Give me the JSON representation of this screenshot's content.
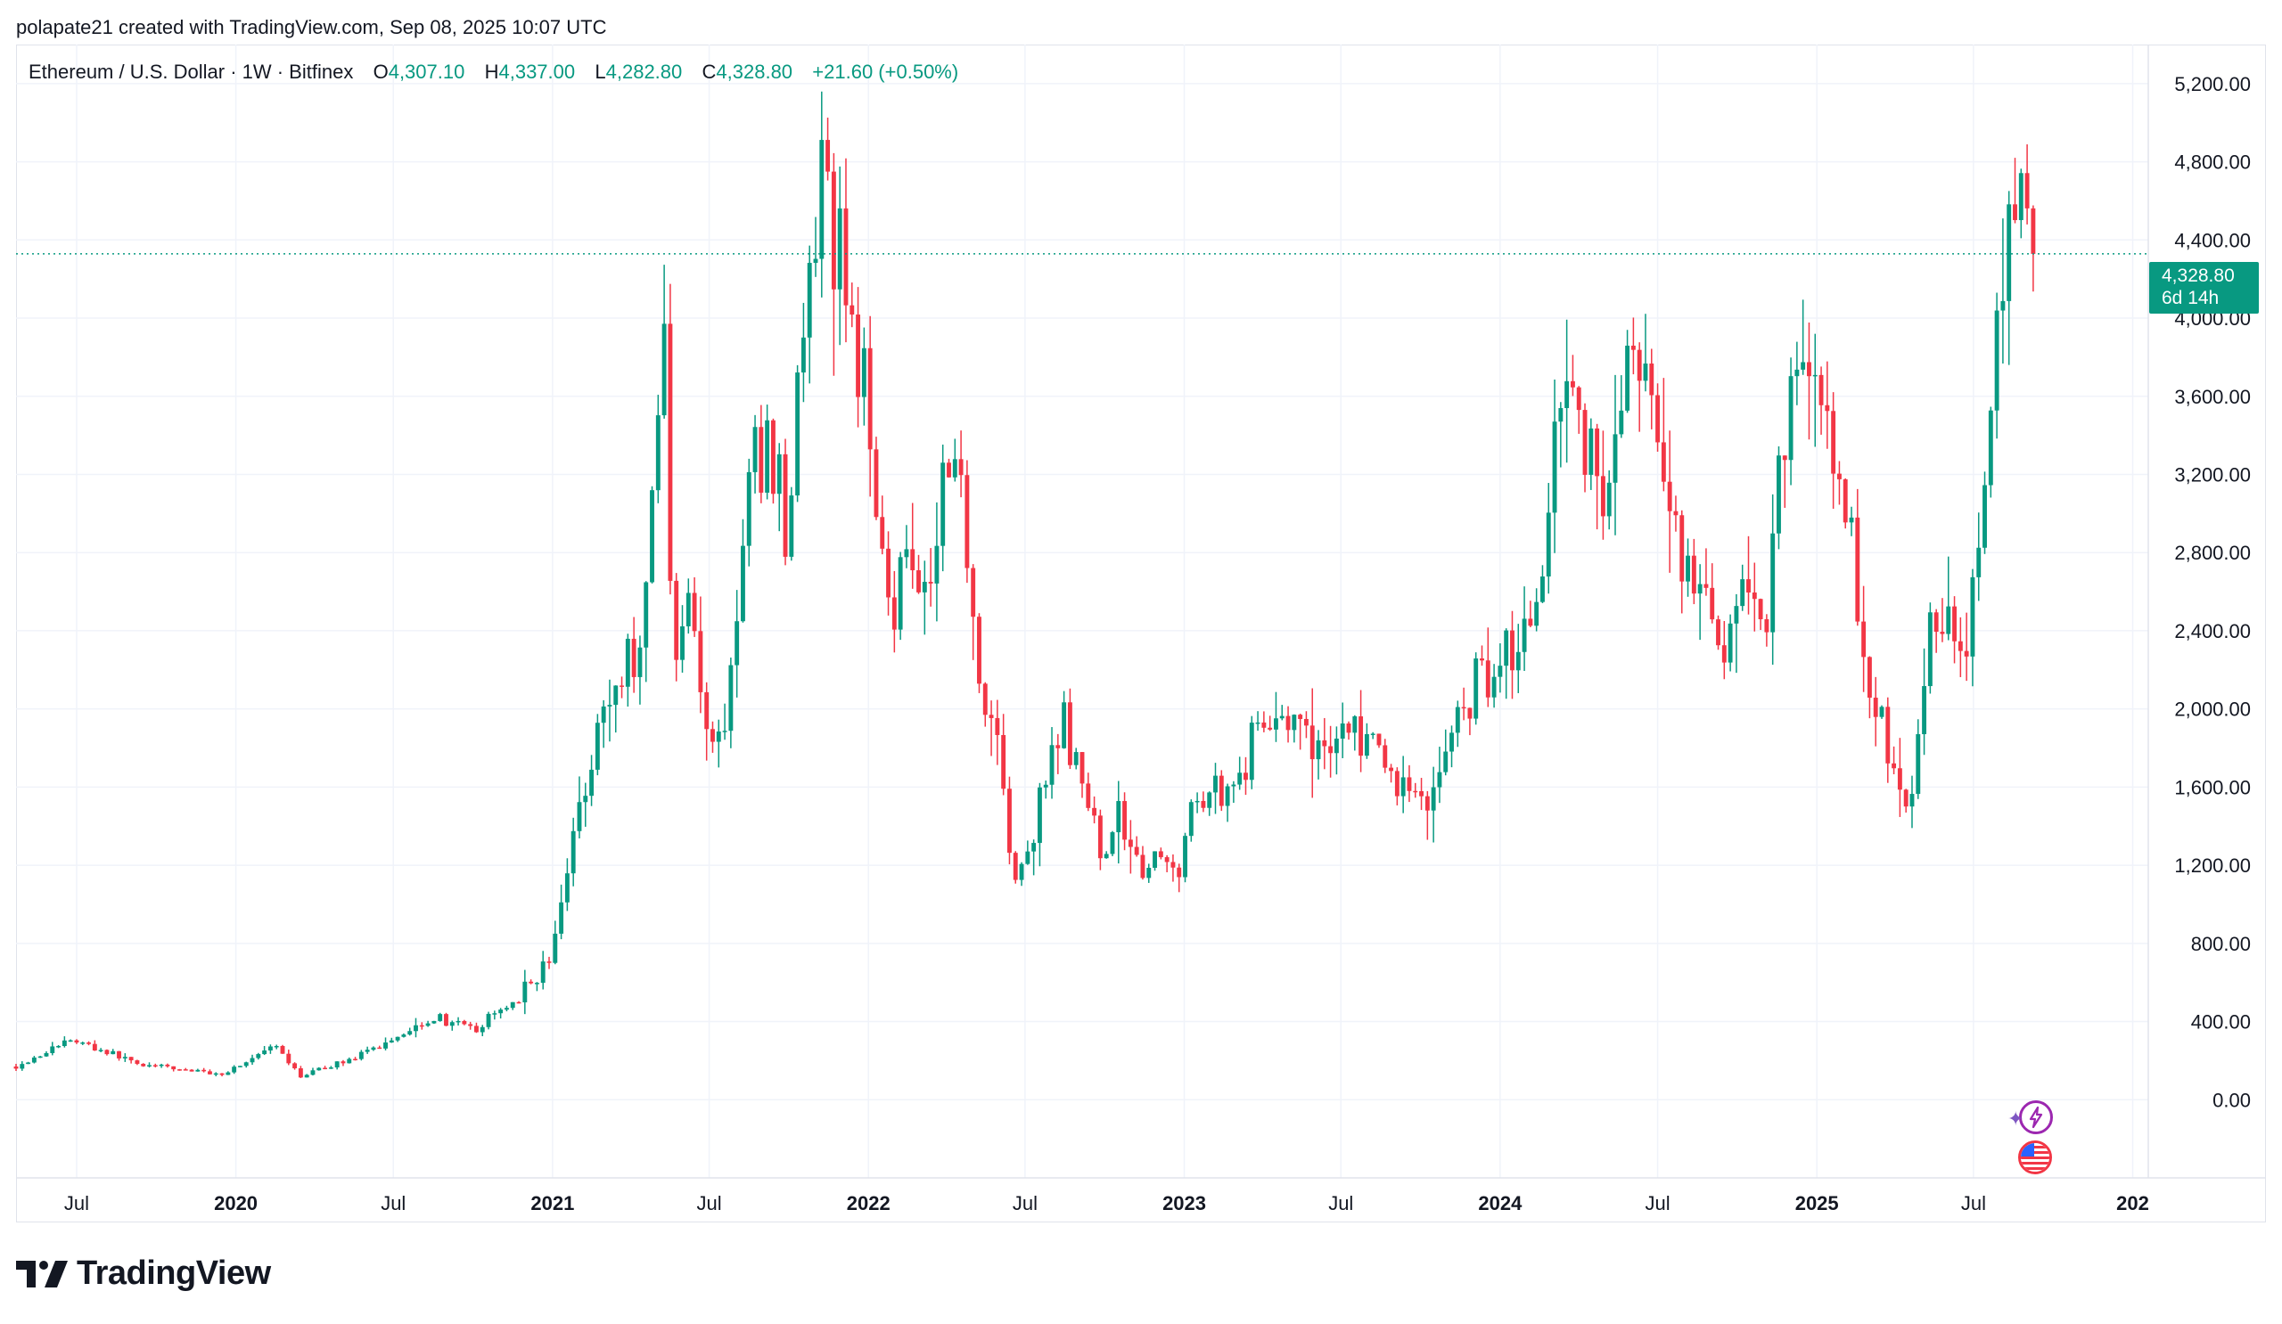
{
  "header": {
    "byline": "polapate21 created with TradingView.com, Sep 08, 2025 10:07 UTC"
  },
  "legend": {
    "symbol": "Ethereum / U.S. Dollar · 1W · Bitfinex",
    "open_key": "O",
    "open": "4,307.10",
    "high_key": "H",
    "high": "4,337.00",
    "low_key": "L",
    "low": "4,282.80",
    "close_key": "C",
    "close": "4,328.80",
    "change": "+21.60 (+0.50%)"
  },
  "price_tag": {
    "price": "4,328.80",
    "countdown": "6d 14h"
  },
  "brand": {
    "name": "TradingView"
  },
  "icons": [
    "lightning-icon",
    "us-flag-icon"
  ],
  "colors": {
    "up": "#089981",
    "down": "#f23645",
    "grid": "#f0f3fa",
    "text": "#131722",
    "axis": "#e0e3eb"
  },
  "chart_data": {
    "type": "candlestick",
    "title": "Ethereum / U.S. Dollar · 1W · Bitfinex",
    "ylim": [
      -400,
      5400
    ],
    "y_ticks": [
      0,
      400,
      800,
      1200,
      1600,
      2000,
      2400,
      2800,
      3200,
      3600,
      4000,
      4400,
      4800,
      5200
    ],
    "y_tick_labels": [
      "0.00",
      "400.00",
      "800.00",
      "1,200.00",
      "1,600.00",
      "2,000.00",
      "2,400.00",
      "2,800.00",
      "3,200.00",
      "3,600.00",
      "4,000.00",
      "4,400.00",
      "4,800.00",
      "5,200.00"
    ],
    "x_range": [
      "2019-04-22",
      "2026-01-19"
    ],
    "x_ticks": [
      {
        "date": "2019-07-01",
        "label": "Jul",
        "major": false
      },
      {
        "date": "2020-01-01",
        "label": "2020",
        "major": true
      },
      {
        "date": "2020-07-01",
        "label": "Jul",
        "major": false
      },
      {
        "date": "2021-01-01",
        "label": "2021",
        "major": true
      },
      {
        "date": "2021-07-01",
        "label": "Jul",
        "major": false
      },
      {
        "date": "2022-01-01",
        "label": "2022",
        "major": true
      },
      {
        "date": "2022-07-01",
        "label": "Jul",
        "major": false
      },
      {
        "date": "2023-01-01",
        "label": "2023",
        "major": true
      },
      {
        "date": "2023-07-01",
        "label": "Jul",
        "major": false
      },
      {
        "date": "2024-01-01",
        "label": "2024",
        "major": true
      },
      {
        "date": "2024-07-01",
        "label": "Jul",
        "major": false
      },
      {
        "date": "2025-01-01",
        "label": "2025",
        "major": true
      },
      {
        "date": "2025-07-01",
        "label": "Jul",
        "major": false
      },
      {
        "date": "2026-01-01",
        "label": "202",
        "major": true
      }
    ],
    "last_price": 4328.8,
    "anchors": [
      [
        "2019-04-22",
        170
      ],
      [
        "2019-06-24",
        310
      ],
      [
        "2019-09-15",
        180
      ],
      [
        "2019-12-15",
        130
      ],
      [
        "2020-02-15",
        270
      ],
      [
        "2020-03-15",
        120
      ],
      [
        "2020-06-01",
        240
      ],
      [
        "2020-08-15",
        430
      ],
      [
        "2020-10-01",
        350
      ],
      [
        "2020-11-20",
        520
      ],
      [
        "2021-01-01",
        730
      ],
      [
        "2021-01-20",
        1250
      ],
      [
        "2021-02-20",
        1900
      ],
      [
        "2021-04-15",
        2400
      ],
      [
        "2021-05-10",
        3950
      ],
      [
        "2021-05-20",
        2300
      ],
      [
        "2021-06-10",
        2600
      ],
      [
        "2021-06-25",
        1850
      ],
      [
        "2021-07-20",
        1950
      ],
      [
        "2021-08-20",
        3250
      ],
      [
        "2021-09-10",
        3350
      ],
      [
        "2021-09-28",
        2950
      ],
      [
        "2021-10-25",
        4200
      ],
      [
        "2021-11-10",
        4650
      ],
      [
        "2021-12-10",
        4100
      ],
      [
        "2022-01-10",
        3200
      ],
      [
        "2022-01-28",
        2500
      ],
      [
        "2022-02-20",
        2900
      ],
      [
        "2022-03-10",
        2600
      ],
      [
        "2022-04-05",
        3450
      ],
      [
        "2022-04-25",
        2850
      ],
      [
        "2022-05-15",
        2000
      ],
      [
        "2022-06-01",
        1850
      ],
      [
        "2022-06-18",
        1050
      ],
      [
        "2022-07-15",
        1450
      ],
      [
        "2022-08-15",
        1950
      ],
      [
        "2022-09-05",
        1550
      ],
      [
        "2022-09-25",
        1300
      ],
      [
        "2022-10-20",
        1450
      ],
      [
        "2022-11-15",
        1200
      ],
      [
        "2022-12-25",
        1200
      ],
      [
        "2023-01-20",
        1600
      ],
      [
        "2023-02-25",
        1600
      ],
      [
        "2023-04-15",
        2050
      ],
      [
        "2023-05-20",
        1800
      ],
      [
        "2023-07-15",
        1900
      ],
      [
        "2023-08-25",
        1650
      ],
      [
        "2023-10-15",
        1550
      ],
      [
        "2023-11-15",
        2000
      ],
      [
        "2024-01-01",
        2300
      ],
      [
        "2024-02-10",
        2400
      ],
      [
        "2024-03-10",
        3800
      ],
      [
        "2024-05-01",
        3050
      ],
      [
        "2024-05-28",
        3800
      ],
      [
        "2024-06-20",
        3500
      ],
      [
        "2024-08-05",
        2700
      ],
      [
        "2024-09-10",
        2300
      ],
      [
        "2024-10-01",
        2600
      ],
      [
        "2024-11-01",
        2400
      ],
      [
        "2024-11-25",
        3500
      ],
      [
        "2024-12-15",
        3950
      ],
      [
        "2025-01-10",
        3300
      ],
      [
        "2025-01-25",
        3350
      ],
      [
        "2025-02-10",
        2800
      ],
      [
        "2025-03-01",
        2200
      ],
      [
        "2025-04-08",
        1500
      ],
      [
        "2025-05-01",
        1800
      ],
      [
        "2025-05-15",
        2500
      ],
      [
        "2025-06-10",
        2500
      ],
      [
        "2025-06-25",
        2400
      ],
      [
        "2025-07-10",
        2950
      ],
      [
        "2025-07-25",
        3700
      ],
      [
        "2025-08-15",
        4450
      ],
      [
        "2025-08-25",
        4700
      ],
      [
        "2025-09-08",
        4328.8
      ]
    ]
  }
}
